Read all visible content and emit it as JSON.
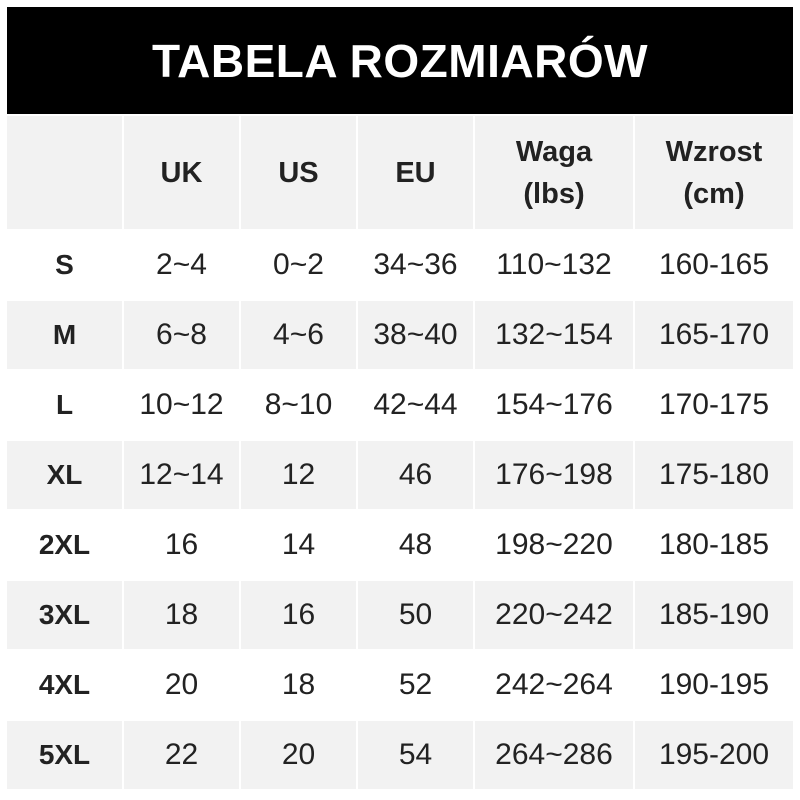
{
  "title": "TABELA ROZMIARÓW",
  "headers": [
    "",
    "UK",
    "US",
    "EU",
    "Waga\n(lbs)",
    "Wzrost\n(cm)"
  ],
  "header_lines": [
    [
      ""
    ],
    [
      "UK"
    ],
    [
      "US"
    ],
    [
      "EU"
    ],
    [
      "Waga",
      "(lbs)"
    ],
    [
      "Wzrost",
      "(cm)"
    ]
  ],
  "rows": [
    [
      "S",
      "2~4",
      "0~2",
      "34~36",
      "110~132",
      "160-165"
    ],
    [
      "M",
      "6~8",
      "4~6",
      "38~40",
      "132~154",
      "165-170"
    ],
    [
      "L",
      "10~12",
      "8~10",
      "42~44",
      "154~176",
      "170-175"
    ],
    [
      "XL",
      "12~14",
      "12",
      "46",
      "176~198",
      "175-180"
    ],
    [
      "2XL",
      "16",
      "14",
      "48",
      "198~220",
      "180-185"
    ],
    [
      "3XL",
      "18",
      "16",
      "50",
      "220~242",
      "185-190"
    ],
    [
      "4XL",
      "20",
      "18",
      "52",
      "242~264",
      "190-195"
    ],
    [
      "5XL",
      "22",
      "20",
      "54",
      "264~286",
      "195-200"
    ]
  ],
  "colors": {
    "title_bg": "#000000",
    "title_text": "#ffffff",
    "stripe": "#f2f2f2",
    "text": "#222222"
  }
}
